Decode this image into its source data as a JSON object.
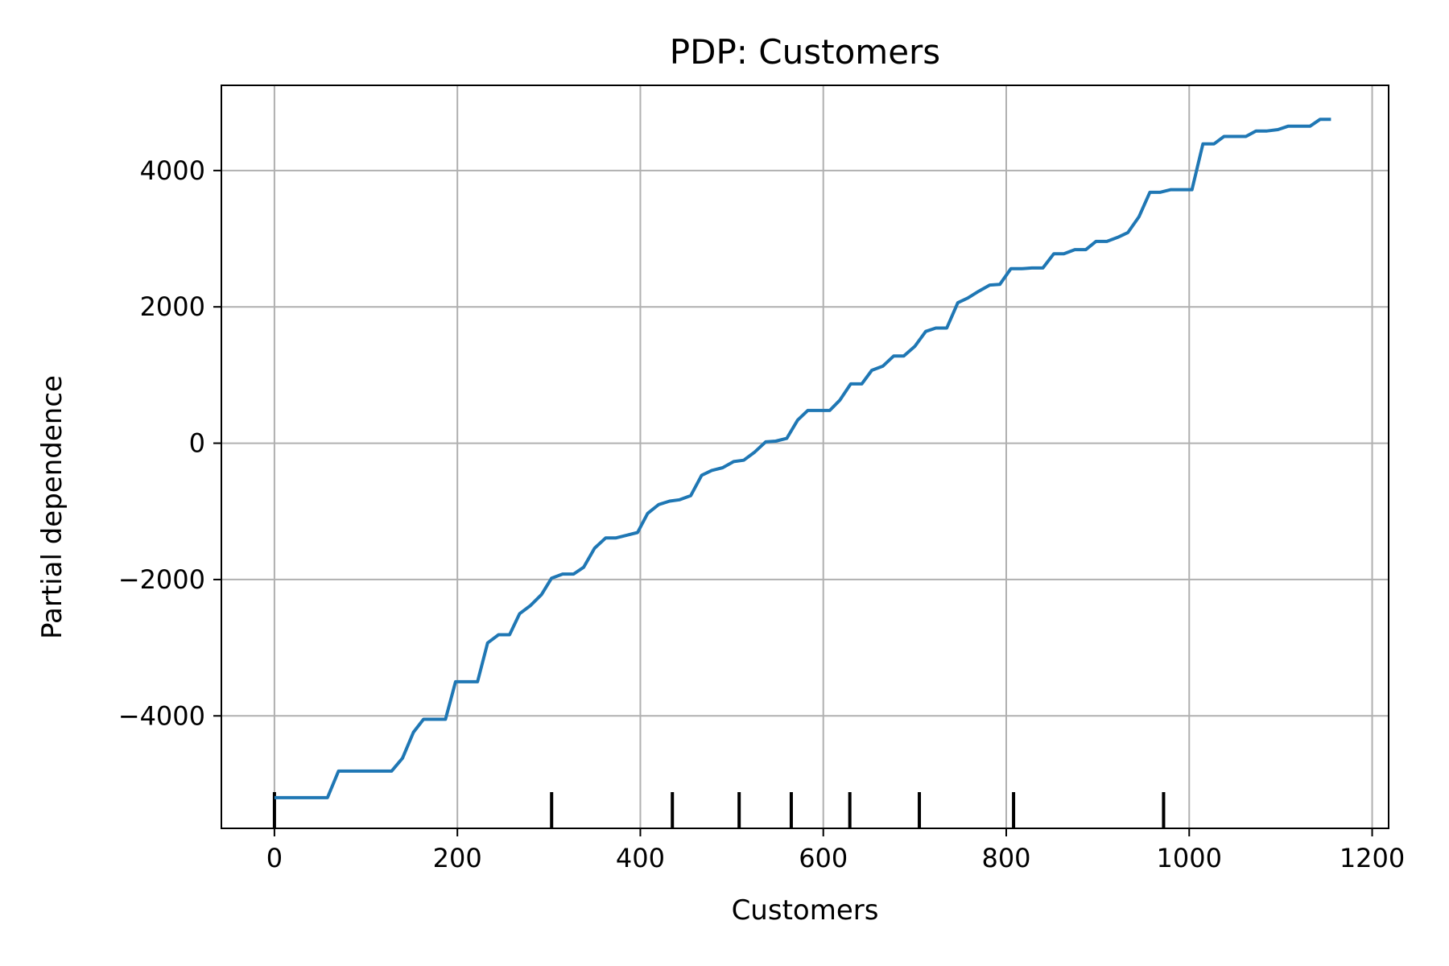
{
  "chart_data": {
    "type": "line",
    "title": "PDP: Customers",
    "xlabel": "Customers",
    "ylabel": "Partial dependence",
    "xlim": [
      -58,
      1218
    ],
    "ylim": [
      -5650,
      5250
    ],
    "xticks": [
      0,
      200,
      400,
      600,
      800,
      1000,
      1200
    ],
    "yticks": [
      -4000,
      -2000,
      0,
      2000,
      4000
    ],
    "xtick_labels": [
      "0",
      "200",
      "400",
      "600",
      "800",
      "1000",
      "1200"
    ],
    "ytick_labels": [
      "−4000",
      "−2000",
      "0",
      "2000",
      "4000"
    ],
    "grid": true,
    "line_color": "#1f77b4",
    "rug_color": "#000000",
    "series": [
      {
        "x": [
          0,
          12,
          23,
          35,
          47,
          58,
          70,
          82,
          93,
          105,
          117,
          128,
          140,
          152,
          163,
          175,
          187,
          198,
          210,
          222,
          233,
          245,
          257,
          268,
          280,
          292,
          303,
          315,
          327,
          338,
          350,
          362,
          373,
          385,
          397,
          408,
          420,
          432,
          443,
          455,
          467,
          478,
          490,
          502,
          513,
          525,
          537,
          548,
          560,
          572,
          583,
          595,
          607,
          618,
          630,
          642,
          653,
          665,
          677,
          688,
          700,
          712,
          723,
          735,
          747,
          758,
          770,
          782,
          793,
          805,
          817,
          828,
          840,
          852,
          863,
          875,
          887,
          898,
          910,
          922,
          933,
          945,
          957,
          968,
          980,
          992,
          1003,
          1015,
          1027,
          1038,
          1050,
          1062,
          1073,
          1085,
          1097,
          1108,
          1120,
          1132,
          1143,
          1155
        ],
        "y": [
          -5200,
          -5200,
          -5200,
          -5200,
          -5200,
          -5200,
          -4810,
          -4810,
          -4810,
          -4810,
          -4810,
          -4810,
          -4620,
          -4240,
          -4050,
          -4050,
          -4050,
          -3500,
          -3500,
          -3500,
          -2930,
          -2810,
          -2810,
          -2500,
          -2380,
          -2220,
          -1980,
          -1920,
          -1920,
          -1820,
          -1540,
          -1390,
          -1390,
          -1350,
          -1310,
          -1030,
          -900,
          -850,
          -830,
          -770,
          -470,
          -400,
          -360,
          -270,
          -250,
          -130,
          20,
          30,
          70,
          340,
          480,
          480,
          480,
          630,
          870,
          870,
          1070,
          1130,
          1280,
          1280,
          1420,
          1640,
          1690,
          1690,
          2060,
          2130,
          2230,
          2320,
          2330,
          2560,
          2560,
          2570,
          2570,
          2780,
          2780,
          2840,
          2840,
          2960,
          2960,
          3020,
          3090,
          3320,
          3680,
          3680,
          3720,
          3720,
          3720,
          4390,
          4390,
          4500,
          4500,
          4500,
          4580,
          4580,
          4600,
          4650,
          4650,
          4650,
          4750,
          4750
        ]
      }
    ],
    "rug_x": [
      0,
      303,
      435,
      508,
      565,
      629,
      705,
      808,
      972
    ]
  }
}
